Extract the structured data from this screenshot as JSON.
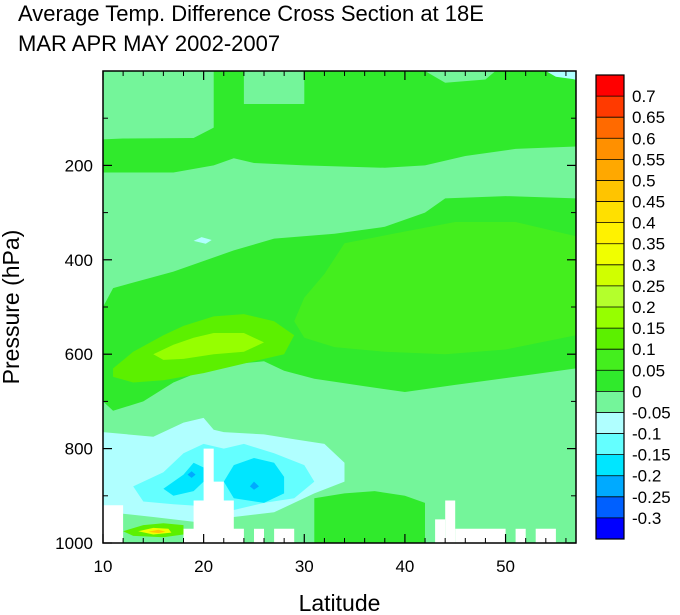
{
  "chart_data": {
    "type": "heatmap",
    "title_lines": [
      "Average Temp. Difference Cross Section at 18E",
      "MAR APR MAY 2002-2007"
    ],
    "xlabel": "Latitude",
    "ylabel": "Pressure (hPa)",
    "xlim": [
      10,
      57
    ],
    "ylim": [
      1000,
      0
    ],
    "x_ticks": [
      10,
      20,
      30,
      40,
      50
    ],
    "y_ticks": [
      200,
      400,
      600,
      800,
      1000
    ],
    "colorbar": {
      "levels": [
        "0.7",
        "0.65",
        "0.6",
        "0.55",
        "0.5",
        "0.45",
        "0.4",
        "0.35",
        "0.3",
        "0.25",
        "0.2",
        "0.15",
        "0.1",
        "0.05",
        "0",
        "-0.05",
        "-0.1",
        "-0.15",
        "-0.2",
        "-0.25",
        "-0.3"
      ],
      "colors_top_to_bottom": [
        "#ff0000",
        "#ff3a00",
        "#ff6a00",
        "#ff9000",
        "#ffa800",
        "#ffc400",
        "#ffe000",
        "#fff200",
        "#f0ff00",
        "#d0ff00",
        "#b4ff2c",
        "#96ff00",
        "#5cf000",
        "#44ee1e",
        "#30ea2c",
        "#74f59a",
        "#b0ffff",
        "#64ffff",
        "#00e6ff",
        "#00aaff",
        "#0060ff",
        "#0000ff"
      ]
    },
    "background_value": -0.025,
    "regions": [
      {
        "name": "upper-positive-band",
        "value": 0.025,
        "points": [
          [
            10,
            215
          ],
          [
            10,
            145
          ],
          [
            12,
            143
          ],
          [
            19,
            142
          ],
          [
            21,
            120
          ],
          [
            21,
            0
          ],
          [
            42,
            0
          ],
          [
            44,
            25
          ],
          [
            48,
            18
          ],
          [
            49,
            0
          ],
          [
            55,
            0
          ],
          [
            57,
            20
          ],
          [
            57,
            160
          ],
          [
            51,
            165
          ],
          [
            46,
            180
          ],
          [
            42,
            200
          ],
          [
            38,
            205
          ],
          [
            30,
            200
          ],
          [
            25,
            195
          ],
          [
            23,
            185
          ],
          [
            21,
            200
          ],
          [
            17,
            215
          ]
        ]
      },
      {
        "name": "upper-band-hole",
        "value": -0.025,
        "points": [
          [
            24,
            70
          ],
          [
            24,
            0
          ],
          [
            30,
            0
          ],
          [
            30,
            70
          ]
        ]
      },
      {
        "name": "mid-positive-region",
        "value": 0.025,
        "points": [
          [
            11,
            460
          ],
          [
            17,
            425
          ],
          [
            23,
            380
          ],
          [
            27,
            355
          ],
          [
            33,
            345
          ],
          [
            38,
            330
          ],
          [
            42,
            300
          ],
          [
            44,
            270
          ],
          [
            50,
            265
          ],
          [
            57,
            270
          ],
          [
            57,
            630
          ],
          [
            52,
            645
          ],
          [
            45,
            665
          ],
          [
            40,
            680
          ],
          [
            36,
            668
          ],
          [
            31,
            652
          ],
          [
            28,
            635
          ],
          [
            26,
            615
          ],
          [
            21,
            625
          ],
          [
            17,
            660
          ],
          [
            14,
            700
          ],
          [
            11,
            720
          ],
          [
            10,
            700
          ],
          [
            10,
            500
          ]
        ]
      },
      {
        "name": "mid-positive-core",
        "value": 0.075,
        "points": [
          [
            34,
            365
          ],
          [
            40,
            340
          ],
          [
            45,
            320
          ],
          [
            51,
            320
          ],
          [
            57,
            350
          ],
          [
            57,
            560
          ],
          [
            50,
            590
          ],
          [
            44,
            600
          ],
          [
            38,
            595
          ],
          [
            33,
            585
          ],
          [
            30,
            565
          ],
          [
            29,
            530
          ],
          [
            30,
            480
          ],
          [
            32,
            430
          ]
        ]
      },
      {
        "name": "mid-level-warm-pocket-outer",
        "value": 0.125,
        "points": [
          [
            11,
            630
          ],
          [
            13,
            595
          ],
          [
            16,
            560
          ],
          [
            18,
            540
          ],
          [
            21,
            520
          ],
          [
            24,
            515
          ],
          [
            27,
            530
          ],
          [
            29,
            560
          ],
          [
            28,
            600
          ],
          [
            24,
            620
          ],
          [
            20,
            640
          ],
          [
            16,
            655
          ],
          [
            13,
            660
          ],
          [
            11,
            648
          ]
        ]
      },
      {
        "name": "mid-level-warm-pocket-inner",
        "value": 0.175,
        "points": [
          [
            15,
            600
          ],
          [
            17,
            580
          ],
          [
            19,
            565
          ],
          [
            21,
            555
          ],
          [
            24,
            555
          ],
          [
            26,
            575
          ],
          [
            24,
            595
          ],
          [
            21,
            600
          ],
          [
            18,
            610
          ],
          [
            16,
            612
          ]
        ]
      },
      {
        "name": "low-level-warm-patch",
        "value": 0.025,
        "points": [
          [
            31,
            1000
          ],
          [
            31,
            905
          ],
          [
            34,
            895
          ],
          [
            37,
            890
          ],
          [
            40,
            900
          ],
          [
            42,
            915
          ],
          [
            42,
            1000
          ]
        ]
      },
      {
        "name": "low-level-cool-outer",
        "value": -0.075,
        "points": [
          [
            10,
            765
          ],
          [
            15,
            775
          ],
          [
            18,
            745
          ],
          [
            20,
            735
          ],
          [
            21,
            760
          ],
          [
            22,
            765
          ],
          [
            26,
            770
          ],
          [
            29,
            780
          ],
          [
            32,
            790
          ],
          [
            34,
            830
          ],
          [
            34,
            870
          ],
          [
            31,
            895
          ],
          [
            27,
            935
          ],
          [
            23,
            945
          ],
          [
            19,
            955
          ],
          [
            15,
            945
          ],
          [
            12,
            938
          ],
          [
            10,
            935
          ]
        ]
      },
      {
        "name": "low-level-cool-mid",
        "value": -0.125,
        "points": [
          [
            13,
            880
          ],
          [
            16,
            850
          ],
          [
            18,
            810
          ],
          [
            20,
            790
          ],
          [
            22,
            800
          ],
          [
            24,
            790
          ],
          [
            27,
            810
          ],
          [
            30,
            835
          ],
          [
            31,
            870
          ],
          [
            29,
            905
          ],
          [
            26,
            915
          ],
          [
            23,
            930
          ],
          [
            20,
            922
          ],
          [
            17,
            918
          ],
          [
            14,
            912
          ]
        ]
      },
      {
        "name": "low-level-cool-inner-a",
        "value": -0.175,
        "points": [
          [
            16,
            885
          ],
          [
            18,
            855
          ],
          [
            19,
            830
          ],
          [
            20,
            840
          ],
          [
            20,
            870
          ],
          [
            19,
            890
          ],
          [
            17,
            900
          ]
        ]
      },
      {
        "name": "low-level-cool-inner-b",
        "value": -0.175,
        "points": [
          [
            22,
            870
          ],
          [
            23,
            835
          ],
          [
            25,
            820
          ],
          [
            27,
            830
          ],
          [
            28,
            860
          ],
          [
            28,
            895
          ],
          [
            26,
            915
          ],
          [
            23,
            905
          ]
        ]
      },
      {
        "name": "low-level-cool-core",
        "value": -0.225,
        "points": [
          [
            24.6,
            880
          ],
          [
            25,
            870
          ],
          [
            25.5,
            880
          ],
          [
            25,
            887
          ]
        ]
      },
      {
        "name": "low-level-cool-dot",
        "value": -0.225,
        "points": [
          [
            18.4,
            855
          ],
          [
            18.8,
            848
          ],
          [
            19.2,
            855
          ],
          [
            18.8,
            862
          ]
        ]
      },
      {
        "name": "small-cool-eddy",
        "value": -0.075,
        "points": [
          [
            19,
            360
          ],
          [
            19.8,
            352
          ],
          [
            20.8,
            358
          ],
          [
            20.2,
            366
          ]
        ]
      },
      {
        "name": "surface-warm-blob-outer",
        "value": 0.125,
        "points": [
          [
            12,
            975
          ],
          [
            14,
            962
          ],
          [
            16,
            958
          ],
          [
            18,
            962
          ],
          [
            18,
            982
          ],
          [
            16,
            988
          ],
          [
            13,
            985
          ]
        ]
      },
      {
        "name": "surface-warm-blob-mid",
        "value": 0.3,
        "points": [
          [
            13.5,
            975
          ],
          [
            15,
            968
          ],
          [
            16.5,
            970
          ],
          [
            16.8,
            978
          ],
          [
            15,
            982
          ]
        ]
      },
      {
        "name": "surface-warm-blob-core",
        "value": 0.45,
        "points": [
          [
            14.5,
            976
          ],
          [
            15.5,
            972
          ],
          [
            16.2,
            976
          ],
          [
            15.5,
            979
          ]
        ]
      },
      {
        "name": "topright-cool-corner",
        "value": -0.075,
        "points": [
          [
            54,
            0
          ],
          [
            57,
            0
          ],
          [
            57,
            18
          ],
          [
            55,
            12
          ]
        ]
      }
    ],
    "missing_regions": [
      [
        [
          10,
          920
        ],
        [
          12,
          920
        ],
        [
          12,
          1000
        ],
        [
          10,
          1000
        ]
      ],
      [
        [
          18,
          1000
        ],
        [
          18,
          970
        ],
        [
          19,
          970
        ],
        [
          19,
          910
        ],
        [
          20,
          910
        ],
        [
          20,
          800
        ],
        [
          21,
          800
        ],
        [
          21,
          870
        ],
        [
          22,
          870
        ],
        [
          22,
          910
        ],
        [
          23,
          910
        ],
        [
          23,
          970
        ],
        [
          24,
          970
        ],
        [
          24,
          1000
        ]
      ],
      [
        [
          25,
          1000
        ],
        [
          25,
          970
        ],
        [
          26,
          970
        ],
        [
          26,
          1000
        ]
      ],
      [
        [
          27,
          1000
        ],
        [
          27,
          970
        ],
        [
          29,
          970
        ],
        [
          29,
          1000
        ]
      ],
      [
        [
          43,
          1000
        ],
        [
          43,
          950
        ],
        [
          44,
          950
        ],
        [
          44,
          1000
        ]
      ],
      [
        [
          44,
          1000
        ],
        [
          44,
          910
        ],
        [
          45,
          910
        ],
        [
          45,
          1000
        ]
      ],
      [
        [
          45,
          1000
        ],
        [
          45,
          970
        ],
        [
          50,
          970
        ],
        [
          50,
          1000
        ]
      ],
      [
        [
          51,
          1000
        ],
        [
          51,
          970
        ],
        [
          52,
          970
        ],
        [
          52,
          1000
        ]
      ],
      [
        [
          53,
          1000
        ],
        [
          53,
          970
        ],
        [
          55,
          970
        ],
        [
          55,
          1000
        ]
      ]
    ],
    "missing_color": "#ffffff"
  }
}
